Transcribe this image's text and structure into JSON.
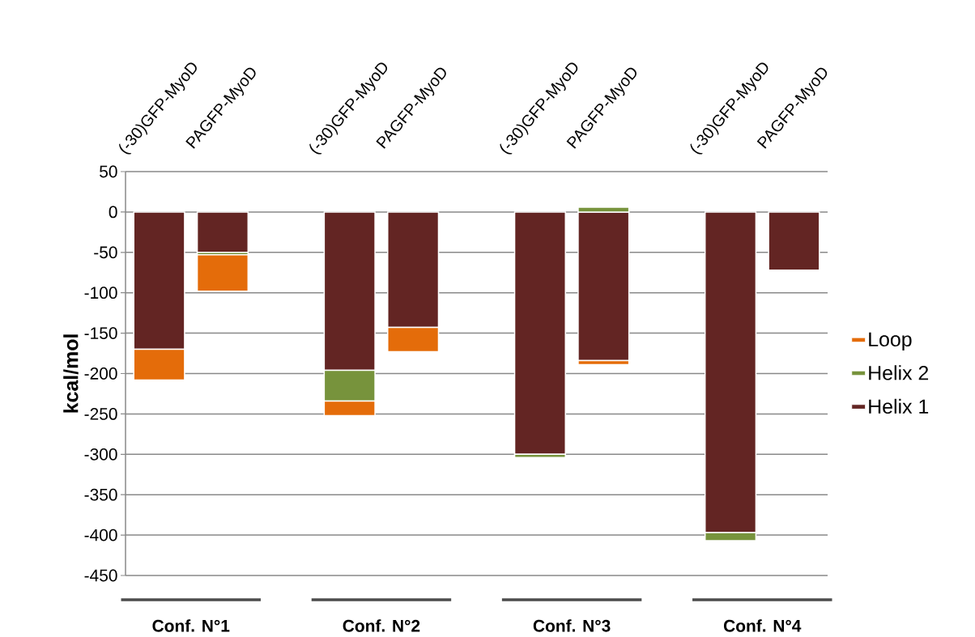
{
  "chart_data": {
    "type": "bar",
    "stacked": true,
    "categories": [
      "(-30)GFP-MyoD",
      "PAGFP-MyoD",
      null,
      "(-30)GFP-MyoD",
      "PAGFP-MyoD",
      null,
      "(-30)GFP-MyoD",
      "PAGFP-MyoD",
      null,
      "(-30)GFP-MyoD",
      "PAGFP-MyoD"
    ],
    "series": [
      {
        "name": "Helix 1",
        "color": "#632523",
        "values": [
          -170,
          -50,
          null,
          -196,
          -143,
          null,
          -300,
          -184,
          null,
          -397,
          -72
        ]
      },
      {
        "name": "Helix 2",
        "color": "#77933c",
        "values": [
          0,
          -3,
          null,
          -38,
          0,
          null,
          -4,
          6,
          null,
          -10,
          0
        ]
      },
      {
        "name": "Loop",
        "color": "#e46c0a",
        "values": [
          -38,
          -45,
          null,
          -18,
          -30,
          null,
          0,
          -5,
          null,
          0,
          0
        ]
      }
    ],
    "ylabel": "kcal/mol",
    "ylim": [
      -450,
      50
    ],
    "yticks": [
      -450,
      -400,
      -350,
      -300,
      -250,
      -200,
      -150,
      -100,
      -50,
      0,
      50
    ],
    "grid": "y",
    "legend": "right",
    "annotations": [
      "Conf. N°1",
      "Conf. N°2",
      "Conf. N°3",
      "Conf. N°4"
    ]
  }
}
